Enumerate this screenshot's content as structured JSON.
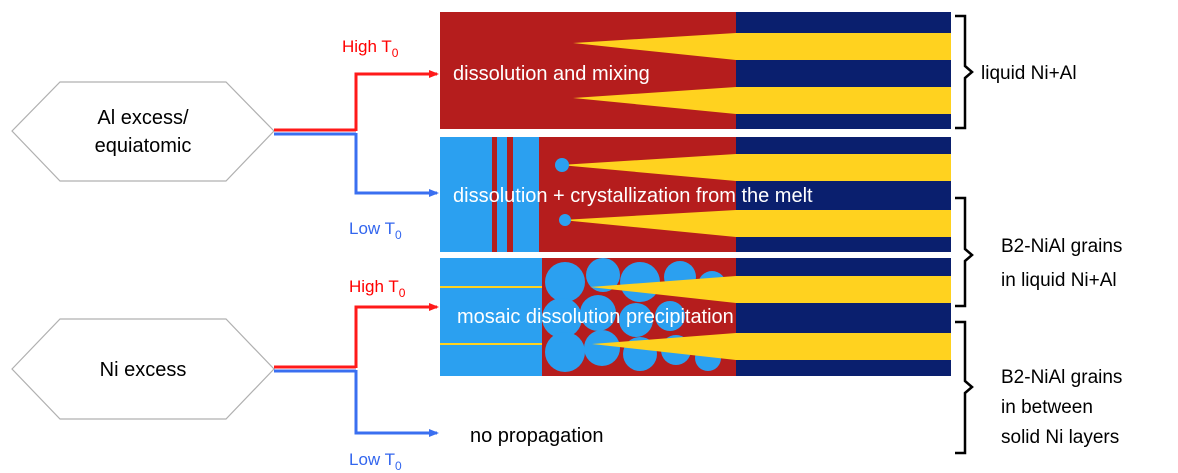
{
  "sources": [
    {
      "id": "al",
      "lines": [
        "Al excess/",
        "equiatomic"
      ]
    },
    {
      "id": "ni",
      "lines": [
        "Ni excess"
      ]
    }
  ],
  "branches": {
    "al_high": {
      "base": "High T",
      "sub": "0"
    },
    "al_low": {
      "base": "Low T",
      "sub": "0"
    },
    "ni_high": {
      "base": "High T",
      "sub": "0"
    },
    "ni_low": {
      "base": "Low T",
      "sub": "0"
    }
  },
  "regimes": [
    "dissolution and mixing",
    "dissolution + crystallization from the melt",
    "mosaic dissolution precipitation",
    "no propagation"
  ],
  "brackets": [
    {
      "lines": [
        "liquid Ni+Al"
      ]
    },
    {
      "lines": [
        "B2-NiAl grains",
        "in liquid Ni+Al"
      ]
    },
    {
      "lines": [
        "B2-NiAl grains",
        "in between",
        "solid Ni layers"
      ]
    }
  ],
  "colors": {
    "high_arrow": "#ff1a1a",
    "low_arrow": "#3a6ff0",
    "high_text": "#ff0000",
    "low_text": "#3366ee",
    "melt": "#b51d1d",
    "navy": "#0a1f6e",
    "yellow": "#ffd21f",
    "blue": "#2ba0f0"
  }
}
